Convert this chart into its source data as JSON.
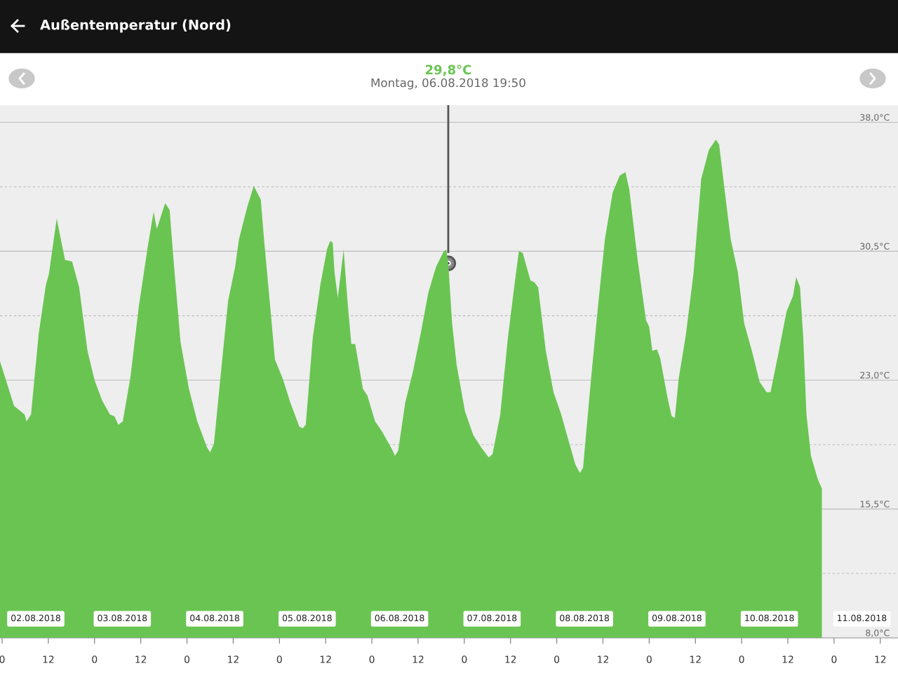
{
  "chart_data": {
    "type": "area",
    "title": "Außentemperatur (Nord)",
    "x": [
      "2018-08-01T23:27",
      "2018-08-02T03:06",
      "2018-08-02T05:50",
      "2018-08-02T06:20",
      "2018-08-02T07:30",
      "2018-08-02T09:30",
      "2018-08-02T11:20",
      "2018-08-02T12:10",
      "2018-08-02T14:10",
      "2018-08-02T16:20",
      "2018-08-02T18:10",
      "2018-08-02T20:00",
      "2018-08-02T22:10",
      "2018-08-03T00:00",
      "2018-08-03T02:00",
      "2018-08-03T04:00",
      "2018-08-03T05:10",
      "2018-08-03T06:10",
      "2018-08-03T07:20",
      "2018-08-03T09:20",
      "2018-08-03T11:30",
      "2018-08-03T13:50",
      "2018-08-03T15:20",
      "2018-08-03T16:10",
      "2018-08-03T18:20",
      "2018-08-03T19:30",
      "2018-08-03T20:30",
      "2018-08-03T22:20",
      "2018-08-04T00:30",
      "2018-08-04T02:40",
      "2018-08-04T05:10",
      "2018-08-04T06:00",
      "2018-08-04T07:00",
      "2018-08-04T08:50",
      "2018-08-04T10:40",
      "2018-08-04T12:30",
      "2018-08-04T13:30",
      "2018-08-04T15:40",
      "2018-08-04T17:20",
      "2018-08-04T19:10",
      "2018-08-04T20:00",
      "2018-08-04T22:00",
      "2018-08-04T22:50",
      "2018-08-05T00:50",
      "2018-08-05T02:50",
      "2018-08-05T05:10",
      "2018-08-05T06:00",
      "2018-08-05T06:50",
      "2018-08-05T08:40",
      "2018-08-05T10:40",
      "2018-08-05T12:20",
      "2018-08-05T13:10",
      "2018-08-05T13:50",
      "2018-08-05T14:20",
      "2018-08-05T15:10",
      "2018-08-05T16:40",
      "2018-08-05T17:40",
      "2018-08-05T18:40",
      "2018-08-05T19:40",
      "2018-08-05T21:40",
      "2018-08-05T22:50",
      "2018-08-06T00:50",
      "2018-08-06T02:40",
      "2018-08-06T05:10",
      "2018-08-06T06:00",
      "2018-08-06T06:50",
      "2018-08-06T08:40",
      "2018-08-06T10:40",
      "2018-08-06T12:50",
      "2018-08-06T14:40",
      "2018-08-06T16:40",
      "2018-08-06T18:40",
      "2018-08-06T19:20",
      "2018-08-06T19:50",
      "2018-08-06T20:50",
      "2018-08-06T22:00",
      "2018-08-07T00:10",
      "2018-08-07T02:20",
      "2018-08-07T04:20",
      "2018-08-07T06:20",
      "2018-08-07T07:20",
      "2018-08-07T09:20",
      "2018-08-07T11:20",
      "2018-08-07T13:10",
      "2018-08-07T14:10",
      "2018-08-07T15:10",
      "2018-08-07T17:10",
      "2018-08-07T18:10",
      "2018-08-07T19:10",
      "2018-08-07T21:10",
      "2018-08-07T23:10",
      "2018-08-08T01:10",
      "2018-08-08T03:10",
      "2018-08-08T04:50",
      "2018-08-08T06:00",
      "2018-08-08T06:50",
      "2018-08-08T08:50",
      "2018-08-08T10:40",
      "2018-08-08T12:30",
      "2018-08-08T14:30",
      "2018-08-08T16:20",
      "2018-08-08T17:50",
      "2018-08-08T18:50",
      "2018-08-08T21:00",
      "2018-08-08T23:10",
      "2018-08-09T00:00",
      "2018-08-09T00:50",
      "2018-08-09T02:00",
      "2018-08-09T02:50",
      "2018-08-09T04:50",
      "2018-08-09T05:50",
      "2018-08-09T06:40",
      "2018-08-09T07:40",
      "2018-08-09T09:30",
      "2018-08-09T11:30",
      "2018-08-09T13:30",
      "2018-08-09T15:30",
      "2018-08-09T17:20",
      "2018-08-09T18:10",
      "2018-08-09T20:00",
      "2018-08-09T21:10",
      "2018-08-09T23:00",
      "2018-08-10T00:40",
      "2018-08-10T02:40",
      "2018-08-10T04:40",
      "2018-08-10T06:30",
      "2018-08-10T07:30",
      "2018-08-10T09:30",
      "2018-08-10T11:40",
      "2018-08-10T13:20",
      "2018-08-10T14:10",
      "2018-08-10T15:10",
      "2018-08-10T16:00",
      "2018-08-10T16:50",
      "2018-08-10T18:00",
      "2018-08-10T19:50",
      "2018-08-10T20:50"
    ],
    "series": [
      {
        "color": "#6ac452",
        "values": [
          24.1,
          21.5,
          21.0,
          20.6,
          21.0,
          25.7,
          28.5,
          29.2,
          32.4,
          30.0,
          29.9,
          28.4,
          24.7,
          23.0,
          21.8,
          21.0,
          20.9,
          20.4,
          20.6,
          23.2,
          27.3,
          30.8,
          32.8,
          31.8,
          33.3,
          32.9,
          30.0,
          25.2,
          22.5,
          20.6,
          19.1,
          18.8,
          19.3,
          23.5,
          27.6,
          29.6,
          31.2,
          33.1,
          34.3,
          33.5,
          31.2,
          26.3,
          24.2,
          23.1,
          21.7,
          20.3,
          20.2,
          20.4,
          25.5,
          28.6,
          30.6,
          31.1,
          31.0,
          29.2,
          27.8,
          30.6,
          27.6,
          25.1,
          25.1,
          22.5,
          22.1,
          20.6,
          20.0,
          19.0,
          18.6,
          18.9,
          21.7,
          23.5,
          25.9,
          28.1,
          29.6,
          30.5,
          30.6,
          29.8,
          26.3,
          23.9,
          21.2,
          19.8,
          19.1,
          18.5,
          18.7,
          21.0,
          25.5,
          28.8,
          30.5,
          30.4,
          28.8,
          28.7,
          28.4,
          24.7,
          22.3,
          21.0,
          19.4,
          18.1,
          17.6,
          17.9,
          22.9,
          27.2,
          31.2,
          33.9,
          34.9,
          35.1,
          34.1,
          30.0,
          26.5,
          26.1,
          24.7,
          24.8,
          24.3,
          21.9,
          20.9,
          20.8,
          23.1,
          25.6,
          29.2,
          34.7,
          36.4,
          37.0,
          36.7,
          33.3,
          31.2,
          29.3,
          26.3,
          24.7,
          22.9,
          22.3,
          22.3,
          24.5,
          27.0,
          27.9,
          29.0,
          28.4,
          25.5,
          21.0,
          18.6,
          17.2,
          16.7
        ]
      }
    ],
    "xlim": [
      "2018-08-01T23:27",
      "2018-08-11T16:36"
    ],
    "ylim": [
      8,
      39
    ],
    "yticks": [
      {
        "value": 38,
        "label": "38,0°C"
      },
      {
        "value": 34.25,
        "label": null
      },
      {
        "value": 30.5,
        "label": "30,5°C"
      },
      {
        "value": 26.75,
        "label": null
      },
      {
        "value": 23,
        "label": "23,0°C"
      },
      {
        "value": 19.25,
        "label": null
      },
      {
        "value": 15.5,
        "label": "15,5°C"
      },
      {
        "value": 11.75,
        "label": null
      },
      {
        "value": 8,
        "label": "8,0°C"
      }
    ],
    "xticks": [
      {
        "value": "2018-08-02T00:00",
        "label": "0"
      },
      {
        "value": "2018-08-02T12:00",
        "label": "12"
      },
      {
        "value": "2018-08-03T00:00",
        "label": "0"
      },
      {
        "value": "2018-08-03T12:00",
        "label": "12"
      },
      {
        "value": "2018-08-04T00:00",
        "label": "0"
      },
      {
        "value": "2018-08-04T12:00",
        "label": "12"
      },
      {
        "value": "2018-08-05T00:00",
        "label": "0"
      },
      {
        "value": "2018-08-05T12:00",
        "label": "12"
      },
      {
        "value": "2018-08-06T00:00",
        "label": "0"
      },
      {
        "value": "2018-08-06T12:00",
        "label": "12"
      },
      {
        "value": "2018-08-07T00:00",
        "label": "0"
      },
      {
        "value": "2018-08-07T12:00",
        "label": "12"
      },
      {
        "value": "2018-08-08T00:00",
        "label": "0"
      },
      {
        "value": "2018-08-08T12:00",
        "label": "12"
      },
      {
        "value": "2018-08-09T00:00",
        "label": "0"
      },
      {
        "value": "2018-08-09T12:00",
        "label": "12"
      },
      {
        "value": "2018-08-10T00:00",
        "label": "0"
      },
      {
        "value": "2018-08-10T12:00",
        "label": "12"
      },
      {
        "value": "2018-08-11T00:00",
        "label": "0"
      },
      {
        "value": "2018-08-11T12:00",
        "label": "12"
      }
    ],
    "grid": "y",
    "ref_lines": [
      {
        "axis": "x",
        "value": "2018-08-06T19:50",
        "label": "Montag, 06.08.2018 19:50",
        "color": "#555555"
      }
    ],
    "annotations": [
      "29,8°C",
      "02.08.2018",
      "03.08.2018",
      "04.08.2018",
      "05.08.2018",
      "06.08.2018",
      "07.08.2018",
      "08.08.2018",
      "09.08.2018",
      "10.08.2018",
      "11.08.2018"
    ]
  }
}
